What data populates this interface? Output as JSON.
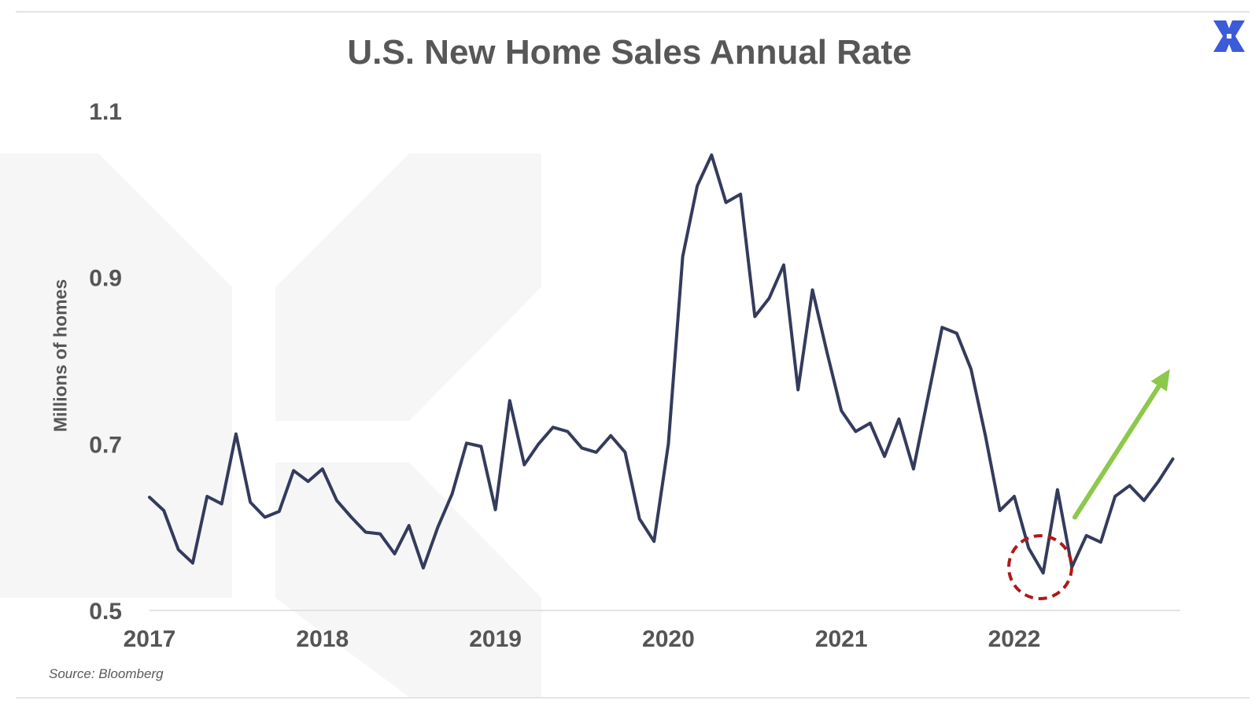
{
  "title": "U.S. New Home Sales Annual Rate",
  "source": "Source: Bloomberg",
  "logo_icon": "x-cross-logo-icon",
  "colors": {
    "line": "#343b5c",
    "arrow": "#8cc84b",
    "circle": "#b01818",
    "text": "#575757",
    "watermark": "#f6f6f7",
    "logo": "#3b5bdb"
  },
  "chart_data": {
    "type": "line",
    "title": "U.S. New Home Sales Annual Rate",
    "ylabel": "Millions of homes",
    "xlabel": "",
    "ylim": [
      0.5,
      1.1
    ],
    "yticks": [
      0.5,
      0.7,
      0.9,
      1.1
    ],
    "ytick_labels": [
      "0.5",
      "0.7",
      "0.9",
      "1.1"
    ],
    "xlim": [
      2017.0,
      2022.96
    ],
    "xticks": [
      2017,
      2018,
      2019,
      2020,
      2021,
      2022
    ],
    "xtick_labels": [
      "2017",
      "2018",
      "2019",
      "2020",
      "2021",
      "2022"
    ],
    "grid": false,
    "legend": false,
    "series": [
      {
        "x": [
          2017.0,
          2017.083,
          2017.167,
          2017.25,
          2017.333,
          2017.417,
          2017.5,
          2017.583,
          2017.667,
          2017.75,
          2017.833,
          2017.917,
          2018.0,
          2018.083,
          2018.167,
          2018.25,
          2018.333,
          2018.417,
          2018.5,
          2018.583,
          2018.667,
          2018.75,
          2018.833,
          2018.917,
          2019.0,
          2019.083,
          2019.167,
          2019.25,
          2019.333,
          2019.417,
          2019.5,
          2019.583,
          2019.667,
          2019.75,
          2019.833,
          2019.917,
          2020.0,
          2020.083,
          2020.167,
          2020.25,
          2020.333,
          2020.417,
          2020.5,
          2020.583,
          2020.667,
          2020.75,
          2020.833,
          2020.917,
          2021.0,
          2021.083,
          2021.167,
          2021.25,
          2021.333,
          2021.417,
          2021.5,
          2021.583,
          2021.667,
          2021.75,
          2021.833,
          2021.917,
          2022.0,
          2022.083,
          2022.167,
          2022.25,
          2022.333,
          2022.417,
          2022.5,
          2022.583,
          2022.667,
          2022.75,
          2022.833,
          2022.917
        ],
        "values": [
          0.636,
          0.62,
          0.573,
          0.557,
          0.637,
          0.628,
          0.712,
          0.63,
          0.612,
          0.619,
          0.668,
          0.655,
          0.67,
          0.632,
          0.612,
          0.594,
          0.592,
          0.568,
          0.602,
          0.551,
          0.6,
          0.64,
          0.701,
          0.697,
          0.621,
          0.752,
          0.675,
          0.7,
          0.72,
          0.715,
          0.695,
          0.69,
          0.71,
          0.69,
          0.61,
          0.583,
          0.7,
          0.925,
          1.01,
          1.047,
          0.99,
          1.0,
          0.853,
          0.875,
          0.915,
          0.765,
          0.885,
          0.81,
          0.74,
          0.715,
          0.725,
          0.685,
          0.73,
          0.67,
          0.755,
          0.84,
          0.833,
          0.79,
          0.71,
          0.62,
          0.637,
          0.575,
          0.545,
          0.645,
          0.552,
          0.59,
          0.582,
          0.637,
          0.65,
          0.632,
          0.655,
          0.682
        ]
      }
    ],
    "annotations": [
      {
        "kind": "dashed-circle",
        "x": 2022.15,
        "y": 0.552
      },
      {
        "kind": "arrow",
        "from": {
          "x": 2022.35,
          "y": 0.612
        },
        "to": {
          "x": 2022.9,
          "y": 0.79
        }
      }
    ]
  }
}
